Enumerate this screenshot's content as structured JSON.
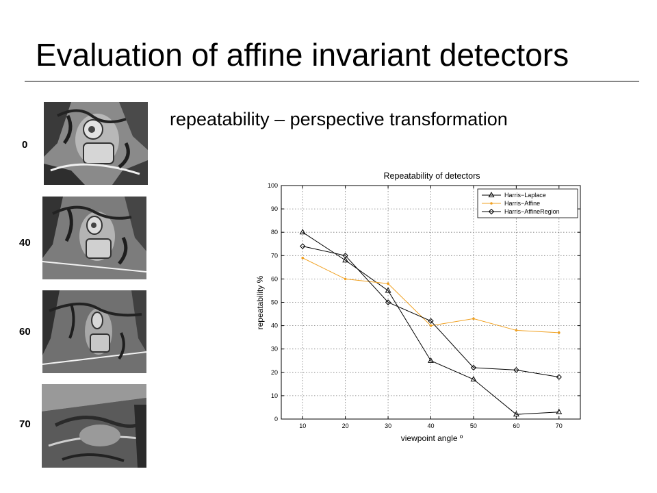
{
  "slide": {
    "title": "Evaluation of affine invariant detectors",
    "subtitle": "repeatability – perspective transformation"
  },
  "thumbnails": [
    {
      "label": "0"
    },
    {
      "label": "40"
    },
    {
      "label": "60"
    },
    {
      "label": "70"
    }
  ],
  "chart_data": {
    "type": "line",
    "title": "Repeatability of detectors",
    "xlabel": "viewpoint angle º",
    "ylabel": "repeatability %",
    "x": [
      10,
      20,
      30,
      40,
      50,
      60,
      70
    ],
    "xlim": [
      5,
      75
    ],
    "ylim": [
      0,
      100
    ],
    "xticks": [
      10,
      20,
      30,
      40,
      50,
      60,
      70
    ],
    "yticks": [
      0,
      10,
      20,
      30,
      40,
      50,
      60,
      70,
      80,
      90,
      100
    ],
    "grid": true,
    "legend_position": "top-right",
    "series": [
      {
        "name": "Harris−Laplace",
        "color": "#000000",
        "marker": "triangle",
        "values": [
          80,
          68,
          55,
          25,
          17,
          2,
          3
        ]
      },
      {
        "name": "Harris−Affine",
        "color": "#f0a020",
        "marker": "dot",
        "values": [
          69,
          60,
          58,
          40,
          43,
          38,
          37
        ]
      },
      {
        "name": "Harris−AffineRegion",
        "color": "#000000",
        "marker": "diamond",
        "values": [
          74,
          70,
          50,
          42,
          22,
          21,
          18
        ]
      }
    ]
  }
}
